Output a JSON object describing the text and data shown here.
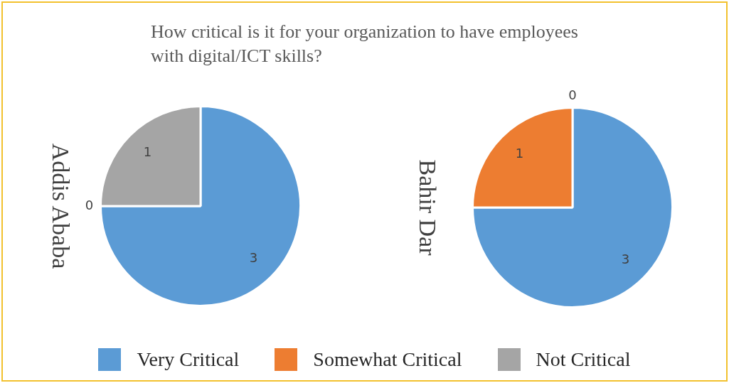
{
  "chart_data": {
    "type": "pie",
    "title": "How critical is it for your organization to have employees with digital/ICT skills?",
    "categories": [
      "Very Critical",
      "Somewhat Critical",
      "Not Critical"
    ],
    "colors": [
      "#5b9bd5",
      "#ed7d31",
      "#a5a5a5"
    ],
    "legend": "bottom",
    "series": [
      {
        "name": "Addis Ababa",
        "values": [
          3,
          0,
          1
        ],
        "value_labels": [
          "3",
          "0",
          "1"
        ]
      },
      {
        "name": "Bahir Dar",
        "values": [
          3,
          1,
          0
        ],
        "value_labels": [
          "3",
          "1",
          "0"
        ]
      }
    ]
  }
}
